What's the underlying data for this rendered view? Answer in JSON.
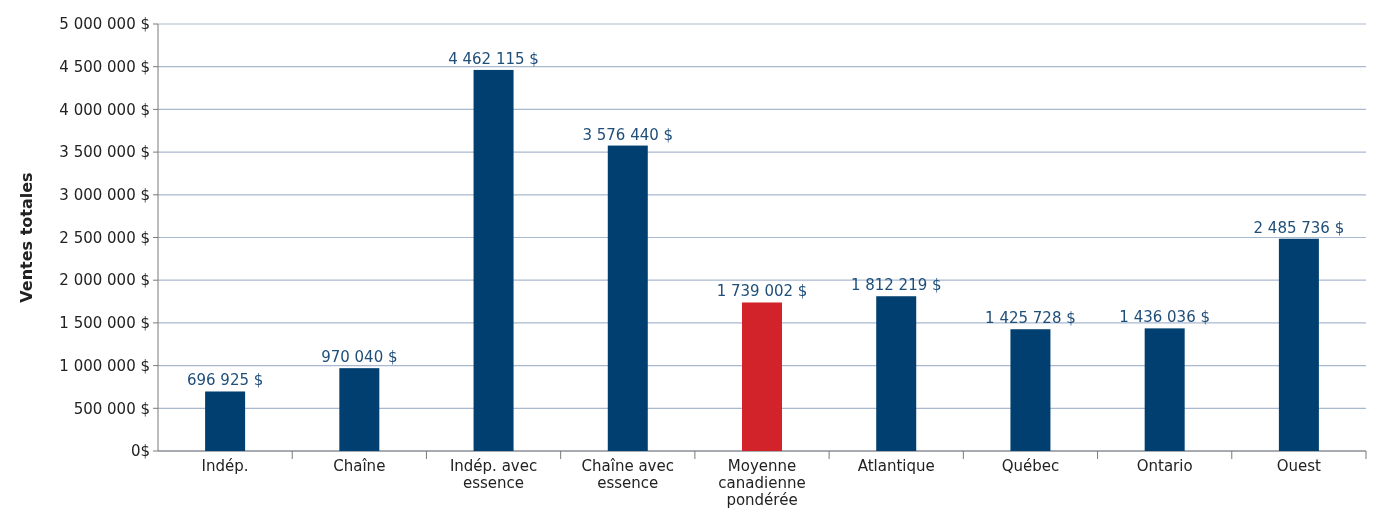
{
  "chart_data": {
    "type": "bar",
    "ylabel": "Ventes totales",
    "categories": [
      "Indép.",
      "Chaîne",
      "Indép. avec essence",
      "Chaîne avec essence",
      "Moyenne canadienne pondérée",
      "Atlantique",
      "Québec",
      "Ontario",
      "Ouest"
    ],
    "values": [
      696925,
      970040,
      4462115,
      3576440,
      1739002,
      1812219,
      1425728,
      1436036,
      2485736
    ],
    "colors": [
      "#003f6f",
      "#003f6f",
      "#003f6f",
      "#003f6f",
      "#d2232a",
      "#003f6f",
      "#003f6f",
      "#003f6f",
      "#003f6f"
    ],
    "value_labels": [
      "696 925 $",
      "970 040 $",
      "4 462 115 $",
      "3 576 440 $",
      "1 739 002 $",
      "1 812 219 $",
      "1 425 728 $",
      "1 436 036 $",
      "2 485 736 $"
    ],
    "ylim": [
      0,
      5000000
    ],
    "yticks": [
      {
        "value": 0,
        "label": "0$"
      },
      {
        "value": 500000,
        "label": "500 000 $"
      },
      {
        "value": 1000000,
        "label": "1 000 000 $"
      },
      {
        "value": 1500000,
        "label": "1 500 000 $"
      },
      {
        "value": 2000000,
        "label": "2 000 000 $"
      },
      {
        "value": 2500000,
        "label": "2 500 000 $"
      },
      {
        "value": 3000000,
        "label": "3 000 000 $"
      },
      {
        "value": 3500000,
        "label": "3 500 000 $"
      },
      {
        "value": 4000000,
        "label": "4 000 000 $"
      },
      {
        "value": 4500000,
        "label": "4 500 000 $"
      },
      {
        "value": 5000000,
        "label": "5 000 000 $"
      }
    ],
    "grid": "y"
  }
}
